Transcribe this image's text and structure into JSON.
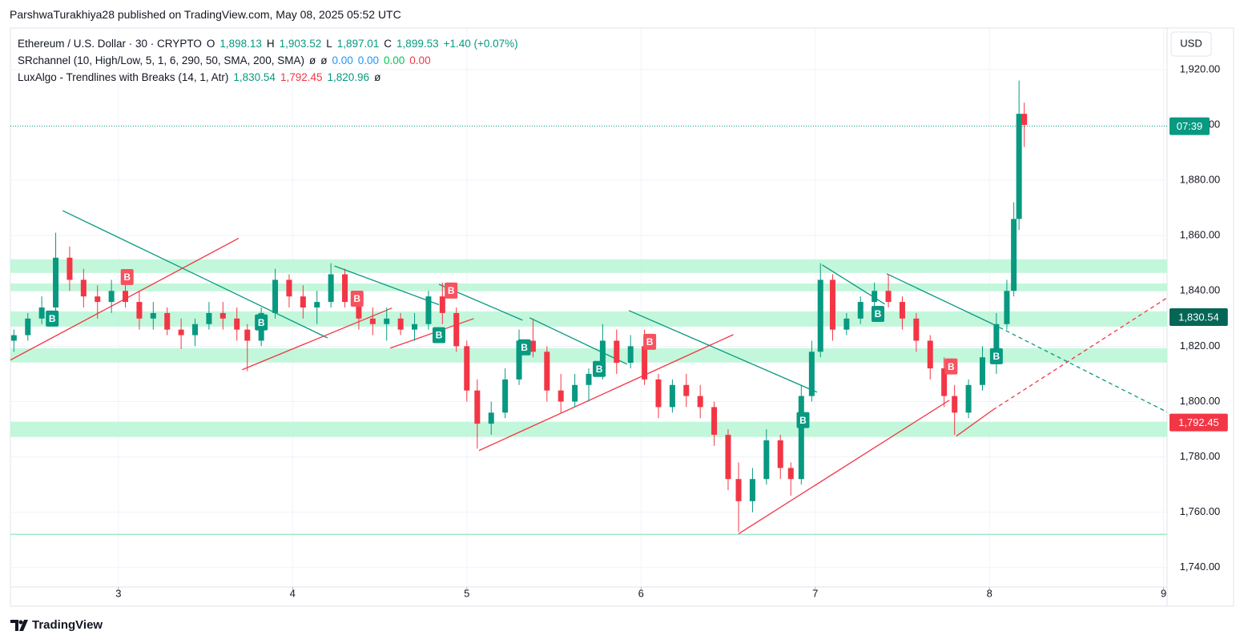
{
  "header": {
    "credit": "ParshwaTurakhiya28 published on TradingView.com, May 08, 2025 05:52 UTC"
  },
  "footer": {
    "brand": "TradingView"
  },
  "chart_data": {
    "type": "candlestick",
    "legend": [
      [
        {
          "text": "Ethereum / U.S. Dollar · 30 · CRYPTO",
          "color": "#131722"
        },
        {
          "text": "O",
          "color": "#131722"
        },
        {
          "text": "1,898.13",
          "color": "#089981"
        },
        {
          "text": "H",
          "color": "#131722"
        },
        {
          "text": "1,903.52",
          "color": "#089981"
        },
        {
          "text": "L",
          "color": "#131722"
        },
        {
          "text": "1,897.01",
          "color": "#089981"
        },
        {
          "text": "C",
          "color": "#131722"
        },
        {
          "text": "1,899.53",
          "color": "#089981"
        },
        {
          "text": "+1.40 (+0.07%)",
          "color": "#089981"
        }
      ],
      [
        {
          "text": "SRchannel (10, High/Low, 5, 1, 6, 290, 50, SMA, 200, SMA)",
          "color": "#131722"
        },
        {
          "text": "ø",
          "color": "#131722"
        },
        {
          "text": "ø",
          "color": "#131722"
        },
        {
          "text": "0.00",
          "color": "#2196f3"
        },
        {
          "text": "0.00",
          "color": "#2196f3"
        },
        {
          "text": "0.00",
          "color": "#00c853"
        },
        {
          "text": "0.00",
          "color": "#f23645"
        }
      ],
      [
        {
          "text": "LuxAlgo - Trendlines with Breaks (14, 1, Atr)",
          "color": "#131722"
        },
        {
          "text": "1,830.54",
          "color": "#089981"
        },
        {
          "text": "1,792.45",
          "color": "#f23645"
        },
        {
          "text": "1,820.96",
          "color": "#089981"
        },
        {
          "text": "ø",
          "color": "#131722"
        }
      ]
    ],
    "currency": "USD",
    "xlim": [
      2.38,
      9.02
    ],
    "xticks": [
      3,
      4,
      5,
      6,
      7,
      8,
      9
    ],
    "ylim": [
      1733,
      1935
    ],
    "yticks": [
      {
        "value": 1740,
        "label": "1,740.00"
      },
      {
        "value": 1760,
        "label": "1,760.00"
      },
      {
        "value": 1780,
        "label": "1,780.00"
      },
      {
        "value": 1800,
        "label": "1,800.00"
      },
      {
        "value": 1820,
        "label": "1,820.00"
      },
      {
        "value": 1840,
        "label": "1,840.00"
      },
      {
        "value": 1860,
        "label": "1,860.00"
      },
      {
        "value": 1880,
        "label": "1,880.00"
      },
      {
        "value": 1900,
        "label": "1,900.00"
      },
      {
        "value": 1920,
        "label": "1,920.00"
      }
    ],
    "grid": true,
    "up_color": "#089981",
    "down_color": "#f23645",
    "candles": {
      "x": [
        2.4,
        2.48,
        2.56,
        2.64,
        2.72,
        2.8,
        2.88,
        2.96,
        3.04,
        3.12,
        3.2,
        3.28,
        3.36,
        3.44,
        3.52,
        3.6,
        3.68,
        3.74,
        3.82,
        3.9,
        3.98,
        4.06,
        4.14,
        4.22,
        4.3,
        4.38,
        4.46,
        4.54,
        4.62,
        4.7,
        4.78,
        4.86,
        4.94,
        5.0,
        5.06,
        5.14,
        5.22,
        5.3,
        5.38,
        5.46,
        5.54,
        5.62,
        5.7,
        5.78,
        5.86,
        5.94,
        6.02,
        6.1,
        6.18,
        6.26,
        6.34,
        6.42,
        6.5,
        6.56,
        6.64,
        6.72,
        6.8,
        6.86,
        6.92,
        6.98,
        7.03,
        7.1,
        7.18,
        7.26,
        7.34,
        7.42,
        7.5,
        7.58,
        7.66,
        7.74,
        7.8,
        7.88,
        7.96,
        8.04,
        8.1,
        8.14,
        8.17,
        8.2
      ],
      "open": [
        1822,
        1824,
        1830,
        1834,
        1852,
        1844,
        1838,
        1836,
        1840,
        1836,
        1830,
        1832,
        1826,
        1824,
        1828,
        1832,
        1830,
        1826,
        1822,
        1832,
        1844,
        1838,
        1834,
        1836,
        1846,
        1836,
        1830,
        1828,
        1830,
        1826,
        1828,
        1838,
        1832,
        1820,
        1804,
        1792,
        1796,
        1808,
        1822,
        1818,
        1804,
        1800,
        1806,
        1810,
        1822,
        1814,
        1820,
        1808,
        1798,
        1806,
        1802,
        1798,
        1788,
        1772,
        1764,
        1772,
        1786,
        1776,
        1772,
        1802,
        1818,
        1844,
        1826,
        1830,
        1836,
        1840,
        1836,
        1830,
        1822,
        1812,
        1802,
        1796,
        1806,
        1816,
        1828,
        1840,
        1866,
        1904
      ],
      "high": [
        1826,
        1832,
        1838,
        1861,
        1856,
        1848,
        1842,
        1844,
        1844,
        1840,
        1836,
        1834,
        1830,
        1830,
        1836,
        1836,
        1834,
        1828,
        1834,
        1848,
        1846,
        1842,
        1840,
        1850,
        1848,
        1840,
        1834,
        1834,
        1832,
        1832,
        1840,
        1843,
        1834,
        1822,
        1808,
        1800,
        1812,
        1826,
        1830,
        1820,
        1810,
        1810,
        1812,
        1828,
        1826,
        1824,
        1826,
        1810,
        1808,
        1810,
        1806,
        1800,
        1790,
        1778,
        1776,
        1790,
        1788,
        1778,
        1806,
        1822,
        1850,
        1846,
        1832,
        1838,
        1843,
        1846,
        1838,
        1832,
        1824,
        1816,
        1806,
        1808,
        1820,
        1832,
        1844,
        1872,
        1916,
        1908
      ],
      "low": [
        1818,
        1822,
        1828,
        1832,
        1840,
        1834,
        1830,
        1832,
        1834,
        1826,
        1826,
        1824,
        1819,
        1820,
        1826,
        1826,
        1822,
        1811,
        1820,
        1830,
        1834,
        1830,
        1828,
        1834,
        1834,
        1826,
        1824,
        1822,
        1824,
        1822,
        1826,
        1828,
        1818,
        1800,
        1783,
        1788,
        1794,
        1806,
        1816,
        1800,
        1796,
        1798,
        1800,
        1808,
        1810,
        1812,
        1806,
        1794,
        1796,
        1798,
        1794,
        1784,
        1768,
        1753,
        1760,
        1770,
        1772,
        1766,
        1770,
        1800,
        1816,
        1822,
        1824,
        1828,
        1832,
        1834,
        1826,
        1818,
        1808,
        1798,
        1788,
        1794,
        1804,
        1810,
        1826,
        1838,
        1862,
        1892
      ],
      "close": [
        1824,
        1830,
        1834,
        1852,
        1844,
        1838,
        1836,
        1840,
        1836,
        1830,
        1832,
        1826,
        1824,
        1828,
        1832,
        1830,
        1826,
        1822,
        1832,
        1844,
        1838,
        1834,
        1836,
        1846,
        1836,
        1830,
        1828,
        1830,
        1826,
        1828,
        1838,
        1832,
        1820,
        1804,
        1792,
        1796,
        1808,
        1822,
        1818,
        1804,
        1800,
        1806,
        1810,
        1822,
        1814,
        1820,
        1808,
        1798,
        1806,
        1802,
        1798,
        1788,
        1772,
        1764,
        1772,
        1786,
        1776,
        1772,
        1802,
        1818,
        1844,
        1826,
        1830,
        1836,
        1840,
        1836,
        1830,
        1822,
        1812,
        1802,
        1796,
        1806,
        1816,
        1828,
        1840,
        1866,
        1904,
        1900
      ]
    },
    "zone_color": "#b9f6d5",
    "zones": [
      {
        "from": 1846.5,
        "to": 1851.4
      },
      {
        "from": 1839.9,
        "to": 1842.7
      },
      {
        "from": 1827.1,
        "to": 1832.6
      },
      {
        "from": 1814.1,
        "to": 1819.3
      },
      {
        "from": 1787.2,
        "to": 1792.7
      }
    ],
    "hlines": [
      {
        "value": 1752,
        "color": "#9fe8c6"
      }
    ],
    "trendlines": [
      {
        "color": "#089981",
        "dashed": false,
        "x": [
          2.68,
          4.2
        ],
        "y": [
          1869,
          1823
        ]
      },
      {
        "color": "#089981",
        "dashed": false,
        "x": [
          4.24,
          4.84
        ],
        "y": [
          1849,
          1835
        ]
      },
      {
        "color": "#089981",
        "dashed": false,
        "x": [
          4.84,
          5.32
        ],
        "y": [
          1842.4,
          1829.4
        ]
      },
      {
        "color": "#089981",
        "dashed": false,
        "x": [
          5.36,
          5.92
        ],
        "y": [
          1830.3,
          1813.5
        ]
      },
      {
        "color": "#089981",
        "dashed": false,
        "x": [
          5.93,
          7.01
        ],
        "y": [
          1832.9,
          1803.4
        ]
      },
      {
        "color": "#089981",
        "dashed": false,
        "x": [
          7.04,
          7.4
        ],
        "y": [
          1849.4,
          1835.2
        ]
      },
      {
        "color": "#089981",
        "dashed": false,
        "x": [
          7.41,
          8.02
        ],
        "y": [
          1846.2,
          1828
        ]
      },
      {
        "color": "#089981",
        "dashed": true,
        "x": [
          8.02,
          9.02
        ],
        "y": [
          1828,
          1796.2
        ]
      },
      {
        "color": "#f23645",
        "dashed": false,
        "x": [
          2.38,
          3.69
        ],
        "y": [
          1815,
          1859
        ]
      },
      {
        "color": "#f23645",
        "dashed": false,
        "x": [
          3.71,
          4.57
        ],
        "y": [
          1811.5,
          1833.8
        ]
      },
      {
        "color": "#f23645",
        "dashed": false,
        "x": [
          4.56,
          5.04
        ],
        "y": [
          1819.3,
          1830
        ]
      },
      {
        "color": "#f23645",
        "dashed": false,
        "x": [
          5.07,
          6.53
        ],
        "y": [
          1782.3,
          1824.2
        ]
      },
      {
        "color": "#f23645",
        "dashed": false,
        "x": [
          6.56,
          7.77
        ],
        "y": [
          1752.2,
          1800.5
        ]
      },
      {
        "color": "#f23645",
        "dashed": false,
        "x": [
          7.81,
          8.02
        ],
        "y": [
          1787.5,
          1797
        ]
      },
      {
        "color": "#f23645",
        "dashed": true,
        "x": [
          8.02,
          9.02
        ],
        "y": [
          1797,
          1837.5
        ]
      }
    ],
    "markers": [
      {
        "x": 2.62,
        "y": 1830,
        "label": "B",
        "color": "#089981"
      },
      {
        "x": 3.82,
        "y": 1828.6,
        "label": "B",
        "color": "#089981"
      },
      {
        "x": 4.84,
        "y": 1824,
        "label": "B",
        "color": "#089981"
      },
      {
        "x": 5.33,
        "y": 1819.6,
        "label": "B",
        "color": "#089981"
      },
      {
        "x": 5.76,
        "y": 1811.8,
        "label": "B",
        "color": "#089981"
      },
      {
        "x": 6.93,
        "y": 1793.3,
        "label": "B",
        "color": "#089981"
      },
      {
        "x": 7.36,
        "y": 1831.7,
        "label": "B",
        "color": "#089981"
      },
      {
        "x": 8.04,
        "y": 1816.4,
        "label": "B",
        "color": "#089981"
      },
      {
        "x": 3.05,
        "y": 1845,
        "label": "B",
        "color": "#f7525f"
      },
      {
        "x": 4.37,
        "y": 1837.2,
        "label": "B",
        "color": "#f7525f"
      },
      {
        "x": 4.91,
        "y": 1840.1,
        "label": "B",
        "color": "#f7525f"
      },
      {
        "x": 6.05,
        "y": 1821.6,
        "label": "B",
        "color": "#f7525f"
      },
      {
        "x": 7.78,
        "y": 1812.7,
        "label": "B",
        "color": "#f7525f"
      }
    ],
    "price_labels": [
      {
        "value": 1899.53,
        "label": "07:39",
        "color": "#089981"
      },
      {
        "value": 1830.54,
        "label": "1,830.54",
        "color": "#056656"
      },
      {
        "value": 1792.45,
        "label": "1,792.45",
        "color": "#f23645"
      }
    ]
  }
}
